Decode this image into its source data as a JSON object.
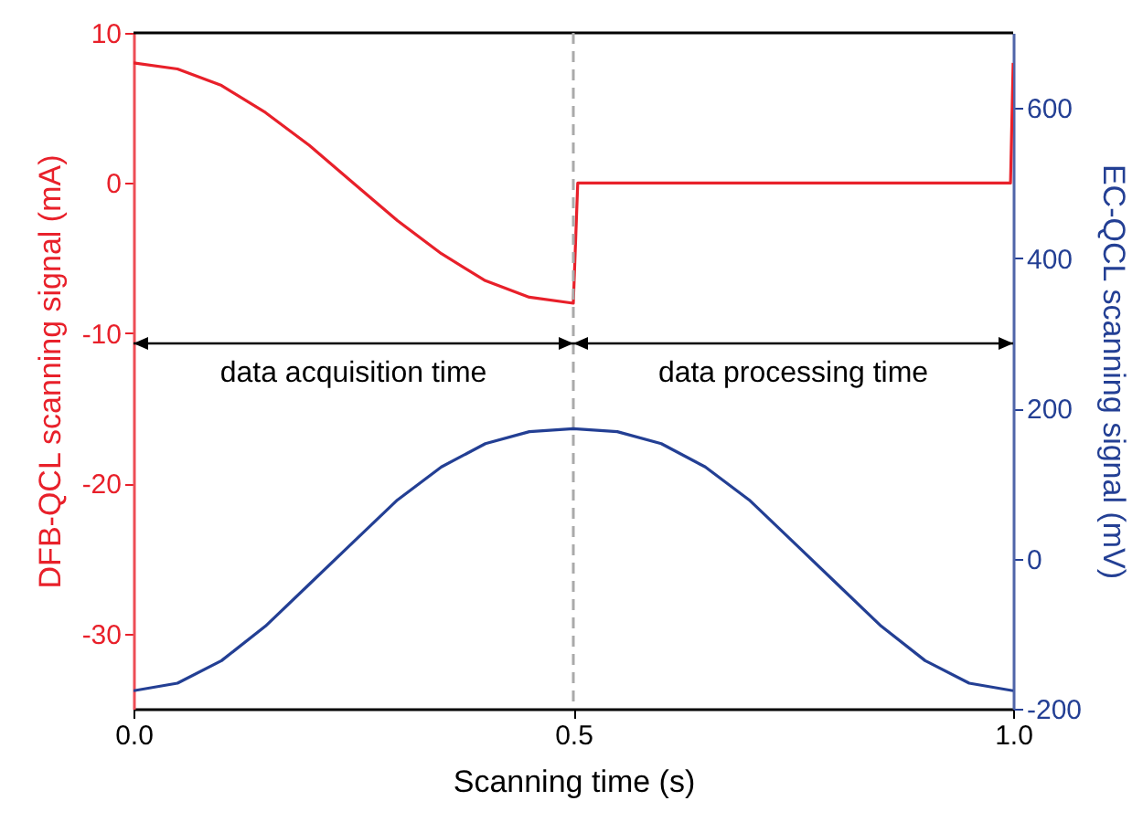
{
  "chart_data": {
    "type": "line",
    "xlabel": "Scanning time (s)",
    "ylabel": "DFB-QCL scanning signal (mA)",
    "y2label": "EC-QCL scanning signal (mV)",
    "xlim": [
      0,
      1
    ],
    "xticks": [
      {
        "value": 0,
        "label": "0.0"
      },
      0.5,
      {
        "value": 1,
        "label": "1.0"
      }
    ],
    "ylim": [
      -35,
      10
    ],
    "yticks": [
      -30,
      -20,
      -10,
      0,
      10
    ],
    "y2lim": [
      -200,
      700
    ],
    "y2ticks": [
      -200,
      0,
      200,
      400,
      600
    ],
    "grid": false,
    "series": [
      {
        "color": "#e8202a",
        "x": [
          0,
          0.05,
          0.1,
          0.15,
          0.2,
          0.25,
          0.3,
          0.35,
          0.4,
          0.45,
          0.5,
          0.505,
          0.997,
          1
        ],
        "values": [
          8,
          7.6,
          6.5,
          4.7,
          2.5,
          0,
          -2.5,
          -4.7,
          -6.5,
          -7.6,
          -8,
          0,
          0,
          8
        ]
      },
      {
        "color": "#233f94",
        "axis": "y2",
        "x": [
          0,
          0.05,
          0.1,
          0.15,
          0.2,
          0.25,
          0.3,
          0.35,
          0.4,
          0.45,
          0.5,
          0.55,
          0.6,
          0.65,
          0.7,
          0.75,
          0.8,
          0.85,
          0.9,
          0.95,
          1
        ],
        "values": [
          -176,
          -166,
          -136,
          -90,
          -34,
          22,
          78,
          122,
          153,
          169,
          173,
          169,
          153,
          122,
          78,
          22,
          -34,
          -90,
          -136,
          -166,
          -176
        ]
      }
    ],
    "ref_lines": [
      {
        "axis": "x",
        "value": 0.5,
        "color": "#aaaaaa",
        "line_style": "dashed"
      }
    ],
    "annotations": [
      "data acquisition time",
      "data processing time"
    ]
  }
}
